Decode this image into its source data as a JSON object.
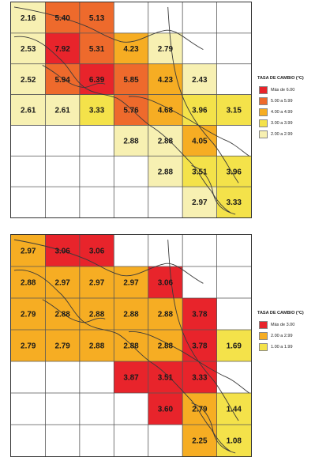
{
  "colors": {
    "red": "#e8242b",
    "orange_red": "#ee6a2c",
    "orange": "#f6ad23",
    "yellow": "#f4e24a",
    "pale_yellow": "#f7f0b2",
    "grid": "#555555",
    "outline": "#3a3a3a"
  },
  "maps": [
    {
      "id": "top",
      "cols": 7,
      "rows": 6,
      "legend": {
        "title": "TASA DE CAMBIO (°C)",
        "items": [
          {
            "label": "Más de 6.00",
            "color": "#e8242b"
          },
          {
            "label": "5.00 a 5.99",
            "color": "#ee6a2c"
          },
          {
            "label": "4.00 a 4.99",
            "color": "#f6ad23"
          },
          {
            "label": "3.00 a 3.99",
            "color": "#f4e24a"
          },
          {
            "label": "2.00 a 2.99",
            "color": "#f7f0b2"
          }
        ]
      },
      "cells": [
        {
          "value": "2.16",
          "col": 0,
          "row": 0
        },
        {
          "value": "5.40",
          "col": 1,
          "row": 0
        },
        {
          "value": "5.13",
          "col": 2,
          "row": 0
        },
        {
          "value": "2.53",
          "col": 0,
          "row": 1
        },
        {
          "value": "7.92",
          "col": 1,
          "row": 1
        },
        {
          "value": "5.31",
          "col": 2,
          "row": 1
        },
        {
          "value": "4.23",
          "col": 3,
          "row": 1
        },
        {
          "value": "2.79",
          "col": 4,
          "row": 1
        },
        {
          "value": "2.52",
          "col": 0,
          "row": 2
        },
        {
          "value": "5.94",
          "col": 1,
          "row": 2
        },
        {
          "value": "6.39",
          "col": 2,
          "row": 2
        },
        {
          "value": "5.85",
          "col": 3,
          "row": 2
        },
        {
          "value": "4.23",
          "col": 4,
          "row": 2
        },
        {
          "value": "2.43",
          "col": 5,
          "row": 2
        },
        {
          "value": "2.61",
          "col": 0,
          "row": 3
        },
        {
          "value": "2.61",
          "col": 1,
          "row": 3
        },
        {
          "value": "3.33",
          "col": 2,
          "row": 3
        },
        {
          "value": "5.76",
          "col": 3,
          "row": 3
        },
        {
          "value": "4.68",
          "col": 4,
          "row": 3
        },
        {
          "value": "3.96",
          "col": 5,
          "row": 3
        },
        {
          "value": "3.15",
          "col": 6,
          "row": 3
        },
        {
          "value": "2.88",
          "col": 3,
          "row": 4
        },
        {
          "value": "2.88",
          "col": 4,
          "row": 4
        },
        {
          "value": "4.05",
          "col": 5,
          "row": 4
        },
        {
          "value": "2.88",
          "col": 4,
          "row": 5
        },
        {
          "value": "3.51",
          "col": 5,
          "row": 5
        },
        {
          "value": "3.96",
          "col": 6,
          "row": 5
        },
        {
          "value": "2.97",
          "col": 5,
          "row": 6
        },
        {
          "value": "3.33",
          "col": 6,
          "row": 6
        }
      ]
    },
    {
      "id": "bottom",
      "cols": 7,
      "rows": 6,
      "legend": {
        "title": "TASA DE CAMBIO (°C)",
        "items": [
          {
            "label": "Más de 3.00",
            "color": "#e8242b"
          },
          {
            "label": "2.00 a 2.99",
            "color": "#f6ad23"
          },
          {
            "label": "1.00 a 1.99",
            "color": "#f4e24a"
          }
        ]
      },
      "cells": [
        {
          "value": "2.97",
          "col": 0,
          "row": 0
        },
        {
          "value": "3.06",
          "col": 1,
          "row": 0
        },
        {
          "value": "3.06",
          "col": 2,
          "row": 0
        },
        {
          "value": "2.88",
          "col": 0,
          "row": 1
        },
        {
          "value": "2.97",
          "col": 1,
          "row": 1
        },
        {
          "value": "2.97",
          "col": 2,
          "row": 1
        },
        {
          "value": "2.97",
          "col": 3,
          "row": 1
        },
        {
          "value": "3.06",
          "col": 4,
          "row": 1
        },
        {
          "value": "2.79",
          "col": 0,
          "row": 2
        },
        {
          "value": "2.88",
          "col": 1,
          "row": 2
        },
        {
          "value": "2.88",
          "col": 2,
          "row": 2
        },
        {
          "value": "2.88",
          "col": 3,
          "row": 2
        },
        {
          "value": "2.88",
          "col": 4,
          "row": 2
        },
        {
          "value": "3.78",
          "col": 5,
          "row": 2
        },
        {
          "value": "2.79",
          "col": 0,
          "row": 3
        },
        {
          "value": "2.79",
          "col": 1,
          "row": 3
        },
        {
          "value": "2.88",
          "col": 2,
          "row": 3
        },
        {
          "value": "2.88",
          "col": 3,
          "row": 3
        },
        {
          "value": "2.88",
          "col": 4,
          "row": 3
        },
        {
          "value": "3.78",
          "col": 5,
          "row": 3
        },
        {
          "value": "1.69",
          "col": 6,
          "row": 3
        },
        {
          "value": "3.87",
          "col": 3,
          "row": 4
        },
        {
          "value": "3.51",
          "col": 4,
          "row": 4
        },
        {
          "value": "3.33",
          "col": 5,
          "row": 4
        },
        {
          "value": "3.60",
          "col": 4,
          "row": 5
        },
        {
          "value": "2.79",
          "col": 5,
          "row": 5
        },
        {
          "value": "1.44",
          "col": 6,
          "row": 5
        },
        {
          "value": "2.25",
          "col": 5,
          "row": 6
        },
        {
          "value": "1.08",
          "col": 6,
          "row": 6
        }
      ]
    }
  ]
}
